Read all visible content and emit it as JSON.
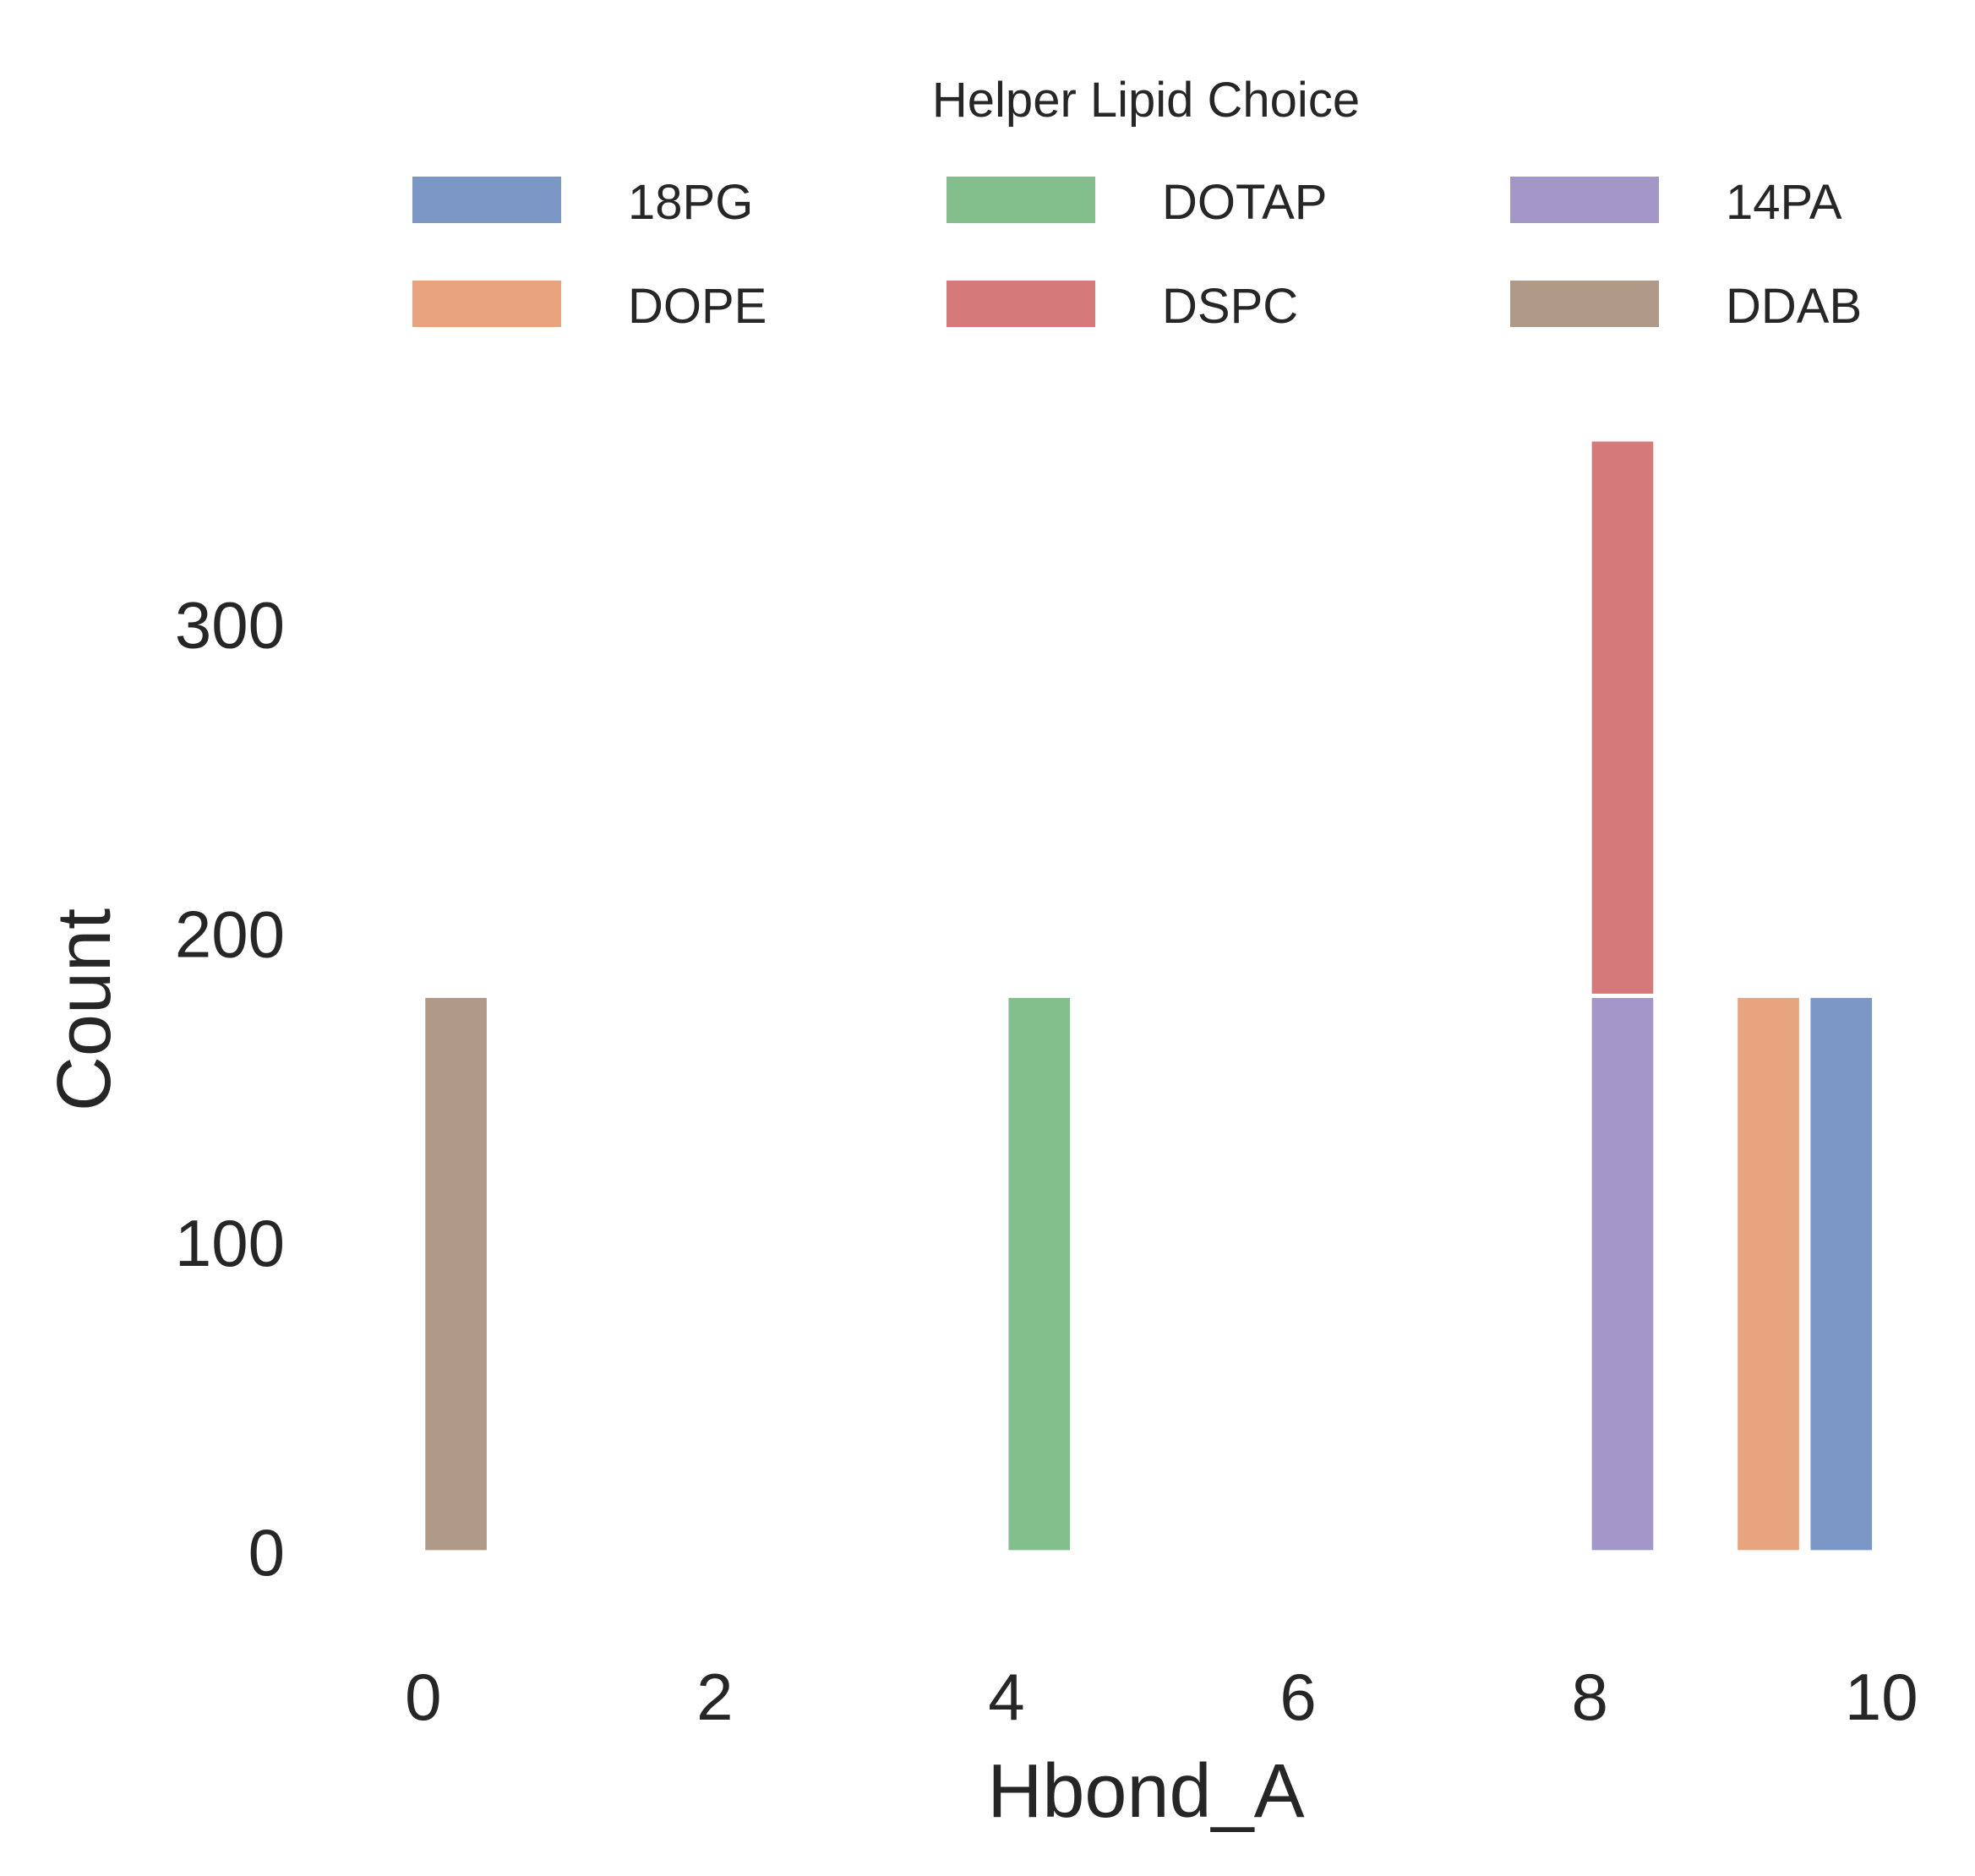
{
  "chart_data": {
    "type": "bar",
    "stacked": true,
    "title": "",
    "xlabel": "Hbond_A",
    "ylabel": "Count",
    "xlim": [
      -0.7,
      10.3
    ],
    "ylim": [
      -20,
      360
    ],
    "x_ticks": [
      0,
      2,
      4,
      6,
      8,
      10
    ],
    "x_tick_labels": [
      "0",
      "2",
      "4",
      "6",
      "8",
      "10"
    ],
    "y_ticks": [
      0,
      100,
      200,
      300
    ],
    "y_tick_labels": [
      "0",
      "100",
      "200",
      "300"
    ],
    "grid": false,
    "bin_width": 0.45,
    "legend": {
      "title": "Helper Lipid Choice",
      "placement": "top-center",
      "columns": 3
    },
    "series": [
      {
        "name": "18PG",
        "color": "#7b97c6",
        "bars": [
          {
            "x": 9.5,
            "y": 180
          }
        ]
      },
      {
        "name": "DOPE",
        "color": "#e7a47f",
        "bars": [
          {
            "x": 9.0,
            "y": 180
          }
        ]
      },
      {
        "name": "DOTAP",
        "color": "#82bf8d",
        "bars": [
          {
            "x": 4.0,
            "y": 180
          }
        ]
      },
      {
        "name": "DSPC",
        "color": "#d5797b",
        "bars": [
          {
            "x": 8.0,
            "y": 180,
            "stacked_on": "14PA"
          }
        ]
      },
      {
        "name": "14PA",
        "color": "#a397c8",
        "bars": [
          {
            "x": 8.0,
            "y": 180
          }
        ]
      },
      {
        "name": "DDAB",
        "color": "#ae9a87",
        "bars": [
          {
            "x": 0.0,
            "y": 180
          }
        ]
      }
    ]
  }
}
